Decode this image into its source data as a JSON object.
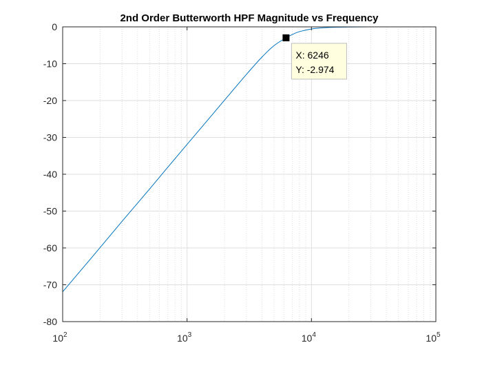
{
  "chart_data": {
    "type": "line",
    "title": "2nd Order Butterworth HPF Magnitude vs Frequency",
    "xlabel": "",
    "ylabel": "",
    "xscale": "log",
    "xlim": [
      100,
      100000
    ],
    "ylim": [
      -80,
      0
    ],
    "grid": true,
    "minor_grid": true,
    "line_color": "#0072bd",
    "x_ticks": [
      {
        "value": 100,
        "base": "10",
        "exp": "2"
      },
      {
        "value": 1000,
        "base": "10",
        "exp": "3"
      },
      {
        "value": 10000,
        "base": "10",
        "exp": "4"
      },
      {
        "value": 100000,
        "base": "10",
        "exp": "5"
      }
    ],
    "y_ticks": [
      {
        "value": 0,
        "label": "0"
      },
      {
        "value": -10,
        "label": "-10"
      },
      {
        "value": -20,
        "label": "-20"
      },
      {
        "value": -30,
        "label": "-30"
      },
      {
        "value": -40,
        "label": "-40"
      },
      {
        "value": -50,
        "label": "-50"
      },
      {
        "value": -60,
        "label": "-60"
      },
      {
        "value": -70,
        "label": "-70"
      },
      {
        "value": -80,
        "label": "-80"
      }
    ],
    "series": [
      {
        "x": [
          100,
          150,
          200,
          300,
          500,
          700,
          1000,
          1500,
          2000,
          3000,
          4000,
          5000,
          6246,
          7000,
          8000,
          10000,
          12000,
          15000,
          20000,
          30000,
          50000,
          100000
        ],
        "y": [
          -71.9,
          -64.9,
          -59.9,
          -52.8,
          -44.0,
          -38.1,
          -31.9,
          -24.9,
          -19.9,
          -12.9,
          -8.2,
          -5.1,
          -2.97,
          -2.1,
          -1.3,
          -0.58,
          -0.29,
          -0.12,
          -0.04,
          -0.01,
          0,
          0
        ]
      }
    ],
    "datatip": {
      "x": 6246,
      "y": -2.974,
      "x_label": "X: 6246",
      "y_label": "Y: -2.974"
    }
  }
}
